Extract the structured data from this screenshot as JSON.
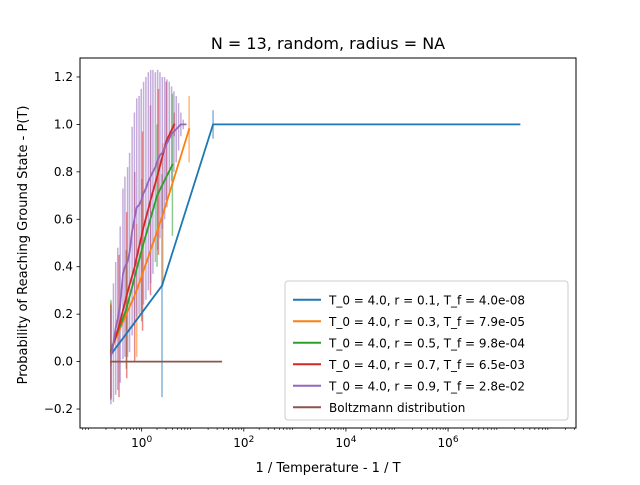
{
  "chart_data": {
    "type": "line",
    "title": "N = 13, random, radius = NA",
    "xlabel": "1 / Temperature - 1 / T",
    "ylabel": "Probability of Reaching Ground State - P(T)",
    "xscale": "log",
    "xlim": [
      0.062,
      320000000.0
    ],
    "ylim": [
      -0.28,
      1.28
    ],
    "x_ticks": [
      {
        "value": 1,
        "label": "10^0"
      },
      {
        "value": 100,
        "label": "10^2"
      },
      {
        "value": 10000,
        "label": "10^4"
      },
      {
        "value": 1000000,
        "label": "10^6"
      }
    ],
    "y_ticks": [
      -0.2,
      0.0,
      0.2,
      0.4,
      0.6,
      0.8,
      1.0,
      1.2
    ],
    "y_tick_labels": [
      "−0.2",
      "0.0",
      "0.2",
      "0.4",
      "0.6",
      "0.8",
      "1.0",
      "1.2"
    ],
    "grid": false,
    "legend_position": "lower right",
    "series": [
      {
        "name": "T_0 = 4.0, r = 0.1, T_f = 4.0e-08",
        "color": "#1f77b4",
        "x": [
          0.25,
          2.5,
          25,
          250,
          2500,
          25000,
          250000,
          2500000,
          25000000
        ],
        "y": [
          0.03,
          0.32,
          1.0,
          1.0,
          1.0,
          1.0,
          1.0,
          1.0,
          1.0
        ],
        "err": [
          0.05,
          0.47,
          0.06,
          0.0,
          0.0,
          0.0,
          0.0,
          0.0,
          0.0
        ]
      },
      {
        "name": "T_0 = 4.0, r = 0.3, T_f = 7.9e-05",
        "color": "#ff7f0e",
        "x": [
          0.25,
          0.8,
          2.6,
          8.5
        ],
        "y": [
          0.05,
          0.3,
          0.62,
          0.98
        ],
        "err": [
          0.2,
          0.28,
          0.3,
          0.14
        ]
      },
      {
        "name": "T_0 = 4.0, r = 0.5, T_f = 9.8e-04",
        "color": "#2ca02c",
        "x": [
          0.25,
          0.5,
          1.0,
          2.0,
          4.0
        ],
        "y": [
          0.05,
          0.22,
          0.47,
          0.7,
          0.83
        ],
        "err": [
          0.21,
          0.25,
          0.3,
          0.3,
          0.3
        ]
      },
      {
        "name": "T_0 = 4.0, r = 0.7, T_f = 6.5e-03",
        "color": "#d62728",
        "x": [
          0.25,
          0.36,
          0.51,
          0.73,
          1.04,
          1.49,
          2.13,
          3.04,
          4.34
        ],
        "y": [
          0.04,
          0.15,
          0.28,
          0.4,
          0.55,
          0.68,
          0.8,
          0.93,
          1.0
        ],
        "err": [
          0.2,
          0.3,
          0.35,
          0.4,
          0.42,
          0.4,
          0.35,
          0.25,
          0.05
        ]
      },
      {
        "name": "T_0 = 4.0, r = 0.9, T_f = 2.8e-02",
        "color": "#9467bd",
        "x": [
          0.25,
          0.28,
          0.31,
          0.34,
          0.38,
          0.43,
          0.47,
          0.53,
          0.58,
          0.65,
          0.72,
          0.8,
          0.89,
          0.98,
          1.09,
          1.21,
          1.35,
          1.5,
          1.66,
          1.85,
          2.05,
          2.28,
          2.53,
          2.81,
          3.12,
          3.47,
          3.85,
          4.28,
          4.75,
          5.28,
          5.86,
          6.51,
          7.24
        ],
        "y": [
          0.02,
          0.08,
          0.14,
          0.18,
          0.24,
          0.37,
          0.4,
          0.42,
          0.46,
          0.55,
          0.6,
          0.65,
          0.66,
          0.68,
          0.71,
          0.73,
          0.76,
          0.78,
          0.8,
          0.82,
          0.85,
          0.87,
          0.88,
          0.9,
          0.92,
          0.94,
          0.96,
          0.97,
          0.98,
          0.99,
          1.0,
          1.0,
          1.0
        ],
        "err": [
          0.2,
          0.25,
          0.28,
          0.3,
          0.33,
          0.36,
          0.38,
          0.4,
          0.42,
          0.44,
          0.45,
          0.46,
          0.46,
          0.47,
          0.47,
          0.47,
          0.46,
          0.45,
          0.43,
          0.4,
          0.38,
          0.35,
          0.32,
          0.3,
          0.27,
          0.24,
          0.2,
          0.17,
          0.14,
          0.1,
          0.05,
          0.02,
          0.0
        ]
      },
      {
        "name": "Boltzmann distribution",
        "color": "#8c564b",
        "x": [
          0.25,
          36
        ],
        "y": [
          0.0,
          0.0
        ],
        "err": [
          0,
          0
        ]
      }
    ]
  }
}
